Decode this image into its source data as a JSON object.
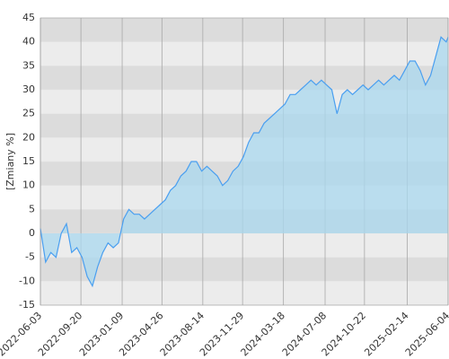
{
  "chart_data": {
    "type": "area",
    "y_label": "[Zmiany %]",
    "x": [
      "2022-06-03",
      "2022-06-17",
      "2022-07-01",
      "2022-07-15",
      "2022-07-29",
      "2022-08-12",
      "2022-08-26",
      "2022-09-09",
      "2022-09-23",
      "2022-10-07",
      "2022-10-21",
      "2022-11-04",
      "2022-11-18",
      "2022-12-02",
      "2022-12-16",
      "2022-12-30",
      "2023-01-13",
      "2023-01-27",
      "2023-02-10",
      "2023-02-24",
      "2023-03-10",
      "2023-03-24",
      "2023-04-07",
      "2023-04-21",
      "2023-05-05",
      "2023-05-19",
      "2023-06-02",
      "2023-06-16",
      "2023-06-30",
      "2023-07-14",
      "2023-07-28",
      "2023-08-11",
      "2023-08-25",
      "2023-09-08",
      "2023-09-22",
      "2023-10-06",
      "2023-10-20",
      "2023-11-03",
      "2023-11-17",
      "2023-12-01",
      "2023-12-15",
      "2023-12-29",
      "2024-01-12",
      "2024-01-26",
      "2024-02-09",
      "2024-02-23",
      "2024-03-08",
      "2024-03-22",
      "2024-04-05",
      "2024-04-19",
      "2024-05-03",
      "2024-05-17",
      "2024-05-31",
      "2024-06-14",
      "2024-06-28",
      "2024-07-12",
      "2024-07-26",
      "2024-08-09",
      "2024-08-23",
      "2024-09-06",
      "2024-09-20",
      "2024-10-04",
      "2024-10-18",
      "2024-11-01",
      "2024-11-15",
      "2024-11-29",
      "2024-12-13",
      "2024-12-27",
      "2025-01-10",
      "2025-01-24",
      "2025-02-07",
      "2025-02-21",
      "2025-03-07",
      "2025-03-21",
      "2025-04-04",
      "2025-04-18",
      "2025-05-02",
      "2025-05-16",
      "2025-05-30",
      "2025-06-04"
    ],
    "series": [
      {
        "color": "#4a9ff0",
        "fill": "#a9d8ef",
        "values": [
          1,
          -6,
          -4,
          -5,
          0,
          2,
          -4,
          -3,
          -5,
          -9,
          -11,
          -7,
          -4,
          -2,
          -3,
          -2,
          3,
          5,
          4,
          4,
          3,
          4,
          5,
          6,
          7,
          9,
          10,
          12,
          13,
          15,
          15,
          13,
          14,
          13,
          12,
          10,
          11,
          13,
          14,
          16,
          19,
          21,
          21,
          23,
          24,
          25,
          26,
          27,
          29,
          29,
          30,
          31,
          32,
          31,
          32,
          31,
          30,
          25,
          29,
          30,
          29,
          30,
          31,
          30,
          31,
          32,
          31,
          32,
          33,
          32,
          34,
          36,
          36,
          34,
          31,
          33,
          37,
          41,
          40,
          41
        ]
      }
    ],
    "xlim": [
      "2022-06-03",
      "2025-06-04"
    ],
    "xticks": [
      "2022-06-03",
      "2022-09-20",
      "2023-01-09",
      "2023-04-26",
      "2023-08-14",
      "2023-11-29",
      "2024-03-18",
      "2024-07-08",
      "2024-10-22",
      "2025-02-14",
      "2025-06-04"
    ],
    "ylim": [
      -15,
      45
    ],
    "yticks": [
      -15,
      -10,
      -5,
      0,
      5,
      10,
      15,
      20,
      25,
      30,
      35,
      40,
      45
    ],
    "band_colors": [
      "#dcdcdc",
      "#ececec"
    ],
    "grid": true
  }
}
